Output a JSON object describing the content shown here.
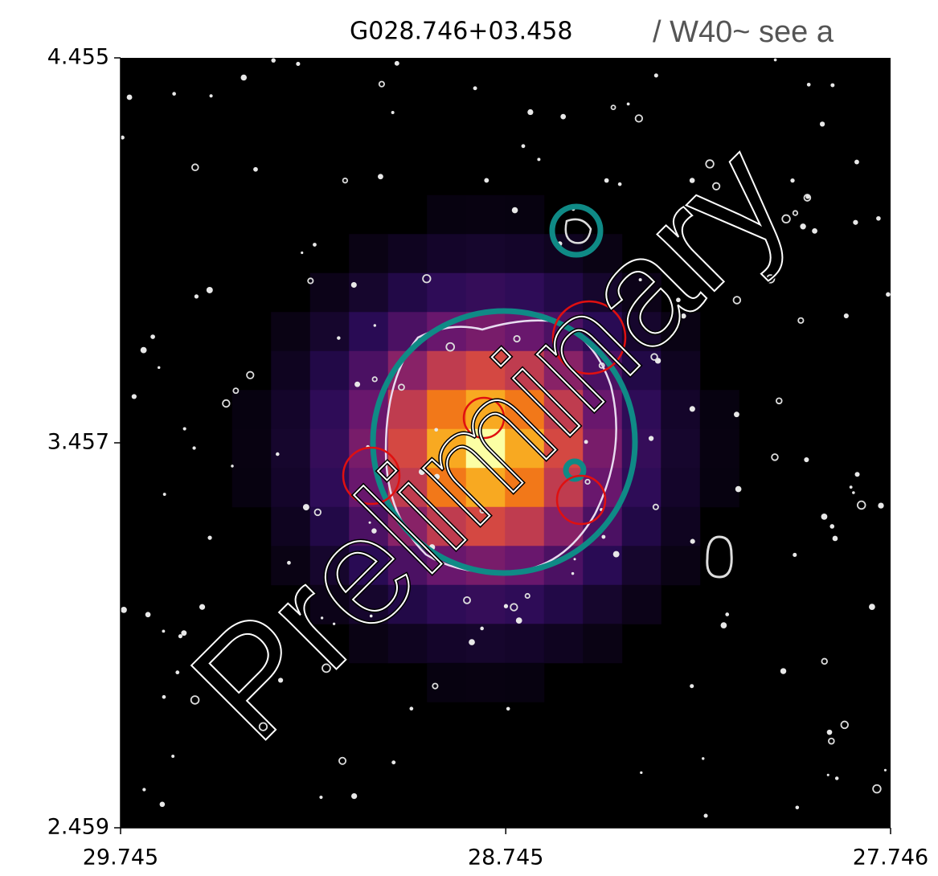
{
  "chart_data": {
    "type": "image",
    "title": "G028.746+03.458",
    "subtitle": "/ W40~ see a",
    "watermark": "Preliminary",
    "xlim": [
      29.745,
      27.746
    ],
    "xticks": [
      29.745,
      28.745,
      27.746
    ],
    "ylim": [
      2.459,
      4.455
    ],
    "yticks": [
      2.459,
      3.457,
      4.455
    ]
  }
}
